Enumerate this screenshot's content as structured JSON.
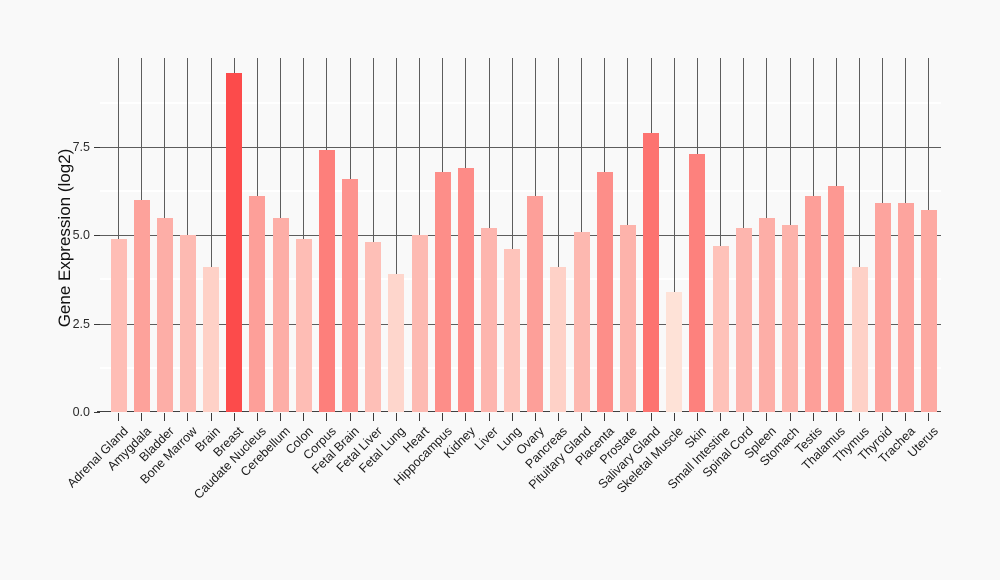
{
  "page": {
    "background_color": "#f9f9f9",
    "title": ""
  },
  "chart_data": {
    "type": "bar",
    "title": "",
    "xlabel": "",
    "ylabel": "Gene Expression (log2)",
    "ylim": [
      0,
      10
    ],
    "yticks": [
      0.0,
      2.5,
      5.0,
      7.5
    ],
    "ytick_labels": [
      "0.0",
      "2.5",
      "5.0",
      "7.5"
    ],
    "minor_gridlines": [
      1.25,
      3.75,
      6.25,
      8.75
    ],
    "legend_position": "none",
    "grid": {
      "vertical_major": true,
      "horizontal_major": true,
      "horizontal_minor_white": true
    },
    "categories": [
      "Adrenal Gland",
      "Amygdala",
      "Bladder",
      "Bone Marrow",
      "Brain",
      "Breast",
      "Caudate Nucleus",
      "Cerebellum",
      "Colon",
      "Corpus",
      "Fetal Brain",
      "Fetal Liver",
      "Fetal Lung",
      "Heart",
      "Hippocampus",
      "Kidney",
      "Liver",
      "Lung",
      "Ovary",
      "Pancreas",
      "Pituitary Gland",
      "Placenta",
      "Prostate",
      "Salivary Gland",
      "Skeletal Muscle",
      "Skin",
      "Small Intestine",
      "Spinal Cord",
      "Spleen",
      "Stomach",
      "Testis",
      "Thalamus",
      "Thymus",
      "Thyroid",
      "Trachea",
      "Uterus"
    ],
    "values": [
      4.9,
      6.0,
      5.5,
      5.0,
      4.1,
      9.6,
      6.1,
      5.5,
      4.9,
      7.4,
      6.6,
      4.8,
      3.9,
      5.0,
      6.8,
      6.9,
      5.2,
      4.6,
      6.1,
      4.1,
      5.1,
      6.8,
      5.3,
      7.9,
      3.4,
      7.3,
      4.7,
      5.2,
      5.5,
      5.3,
      6.1,
      6.4,
      4.1,
      5.9,
      5.9,
      5.7
    ],
    "bar_colors": [
      "#febdb5",
      "#fda29b",
      "#fdaea7",
      "#fdbab2",
      "#fed1c7",
      "#fc4b4b",
      "#fd9f99",
      "#fdaea7",
      "#febdb5",
      "#fd7f7b",
      "#fd938e",
      "#febfb7",
      "#fed6cc",
      "#fdbab2",
      "#fd8e89",
      "#fd8b87",
      "#fdb5ae",
      "#fec4bb",
      "#fd9f99",
      "#fed1c7",
      "#fdb8b0",
      "#fd8e89",
      "#fdb3ab",
      "#fd7370",
      "#fee2d7",
      "#fd817d",
      "#fec2b9",
      "#fdb5ae",
      "#fdaea7",
      "#fdb3ab",
      "#fd9f99",
      "#fd9892",
      "#fed1c7",
      "#fda49e",
      "#fda49e",
      "#fda9a2"
    ],
    "fill_scale": {
      "min_value": 3.4,
      "max_value": 9.6,
      "min_color": "#fee2d7",
      "max_color": "#fc4b4b"
    },
    "colors": {
      "grid_major": "#5d5d5d",
      "grid_minor": "#ffffff",
      "axis_line": "#404040",
      "tick_mark": "#3a3a3a",
      "text": "#1c1c1c"
    }
  }
}
